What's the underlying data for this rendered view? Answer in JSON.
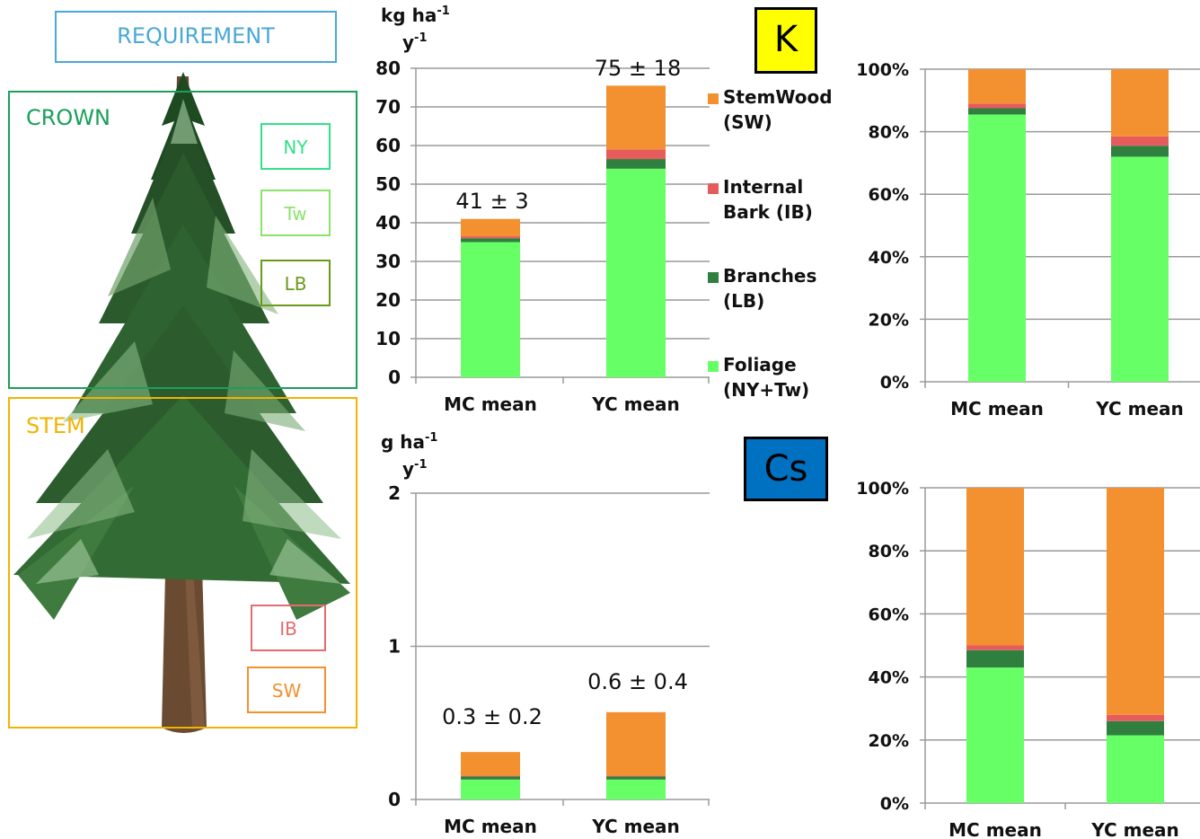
{
  "requirement_label": "REQUIREMENT",
  "tree_zones": {
    "crown": "CROWN",
    "stem": "STEM",
    "ny": "NY",
    "tw": "Tw",
    "lb": "LB",
    "ib": "IB",
    "sw": "SW"
  },
  "elements": {
    "k_badge": "K",
    "cs_badge": "Cs"
  },
  "colors": {
    "foliage": "#66ff66",
    "branches": "#2f7f3f",
    "internal_bark": "#e65c5c",
    "stemwood": "#f39030",
    "k_badge_bg": "#ffff00",
    "cs_badge_bg": "#0070c0",
    "requirement": "#4aa8d8",
    "crown": "#1aa05a",
    "stem": "#f0b400"
  },
  "legend": [
    {
      "key": "stemwood",
      "line1": "StemWood",
      "line2": "(SW)"
    },
    {
      "key": "internal_bark",
      "line1": "Internal",
      "line2": "Bark (IB)"
    },
    {
      "key": "branches",
      "line1": "Branches",
      "line2": "(LB)"
    },
    {
      "key": "foliage",
      "line1": "Foliage",
      "line2": "(NY+Tw)"
    }
  ],
  "chart_data": [
    {
      "id": "k_absolute",
      "type": "bar",
      "stacked": true,
      "element": "K",
      "ylabel_line1": "kg ha",
      "ylabel_sup": "-1",
      "ylabel_line2": "y",
      "ylabel_sup2": "-1",
      "ylim": [
        0,
        80
      ],
      "yticks": [
        0,
        10,
        20,
        30,
        40,
        50,
        60,
        70,
        80
      ],
      "grid": true,
      "categories": [
        "MC mean",
        "YC mean"
      ],
      "totals_labels": [
        "41 ± 3",
        "75 ± 18"
      ],
      "series": [
        {
          "name": "Foliage",
          "key": "foliage",
          "values": [
            35,
            54
          ]
        },
        {
          "name": "Branches",
          "key": "branches",
          "values": [
            1,
            2.5
          ]
        },
        {
          "name": "Internal Bark",
          "key": "internal_bark",
          "values": [
            0.5,
            2.5
          ]
        },
        {
          "name": "StemWood",
          "key": "stemwood",
          "values": [
            4.5,
            16.5
          ]
        }
      ]
    },
    {
      "id": "k_percent",
      "type": "bar",
      "stacked": true,
      "element": "K",
      "ylim": [
        0,
        100
      ],
      "yticks": [
        "0%",
        "20%",
        "40%",
        "60%",
        "80%",
        "100%"
      ],
      "grid": true,
      "categories": [
        "MC mean",
        "YC mean"
      ],
      "series": [
        {
          "name": "Foliage",
          "key": "foliage",
          "values": [
            85.5,
            72
          ]
        },
        {
          "name": "Branches",
          "key": "branches",
          "values": [
            2,
            3.5
          ]
        },
        {
          "name": "Internal Bark",
          "key": "internal_bark",
          "values": [
            1.5,
            3
          ]
        },
        {
          "name": "StemWood",
          "key": "stemwood",
          "values": [
            11,
            21.5
          ]
        }
      ]
    },
    {
      "id": "cs_absolute",
      "type": "bar",
      "stacked": true,
      "element": "Cs",
      "ylabel_line1": "g ha",
      "ylabel_sup": "-1",
      "ylabel_line2": "y",
      "ylabel_sup2": "-1",
      "ylim": [
        0,
        2
      ],
      "yticks": [
        0,
        1,
        2
      ],
      "grid": true,
      "categories": [
        "MC mean",
        "YC mean"
      ],
      "totals_labels": [
        "0.3 ± 0.2",
        "0.6 ± 0.4"
      ],
      "series": [
        {
          "name": "Foliage",
          "key": "foliage",
          "values": [
            0.13,
            0.13
          ]
        },
        {
          "name": "Branches",
          "key": "branches",
          "values": [
            0.02,
            0.02
          ]
        },
        {
          "name": "Internal Bark",
          "key": "internal_bark",
          "values": [
            0.005,
            0.005
          ]
        },
        {
          "name": "StemWood",
          "key": "stemwood",
          "values": [
            0.155,
            0.415
          ]
        }
      ]
    },
    {
      "id": "cs_percent",
      "type": "bar",
      "stacked": true,
      "element": "Cs",
      "ylim": [
        0,
        100
      ],
      "yticks": [
        "0%",
        "20%",
        "40%",
        "60%",
        "80%",
        "100%"
      ],
      "grid": true,
      "categories": [
        "MC mean",
        "YC mean"
      ],
      "series": [
        {
          "name": "Foliage",
          "key": "foliage",
          "values": [
            43,
            21.5
          ]
        },
        {
          "name": "Branches",
          "key": "branches",
          "values": [
            5.5,
            4.5
          ]
        },
        {
          "name": "Internal Bark",
          "key": "internal_bark",
          "values": [
            1.5,
            2
          ]
        },
        {
          "name": "StemWood",
          "key": "stemwood",
          "values": [
            50,
            72
          ]
        }
      ]
    }
  ]
}
